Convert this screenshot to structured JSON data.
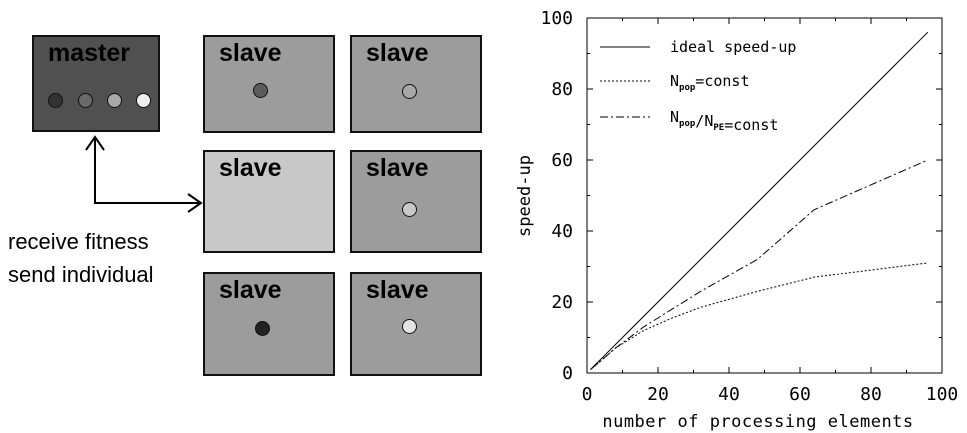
{
  "diagram": {
    "master": {
      "label": "master",
      "fill": "#505050",
      "dot_colors": [
        "#333333",
        "#6a6a6a",
        "#a8a8a8",
        "#eeeeee"
      ]
    },
    "slaves": [
      {
        "label": "slave",
        "fill": "#9c9c9c",
        "dot": "#5c5c5c"
      },
      {
        "label": "slave",
        "fill": "#9c9c9c",
        "dot": "#a8a8a8"
      },
      {
        "label": "slave",
        "fill": "#c8c8c8",
        "dot": null
      },
      {
        "label": "slave",
        "fill": "#9c9c9c",
        "dot": "#c8c8c8"
      },
      {
        "label": "slave",
        "fill": "#9c9c9c",
        "dot": "#222222"
      },
      {
        "label": "slave",
        "fill": "#9c9c9c",
        "dot": "#e4e4e4"
      }
    ],
    "caption_line1": "receive fitness",
    "caption_line2": "send individual"
  },
  "chart_data": {
    "type": "line",
    "xlabel": "number of processing elements",
    "ylabel": "speed-up",
    "xlim": [
      0,
      100
    ],
    "ylim": [
      0,
      100
    ],
    "x_ticks": [
      "0",
      "20",
      "40",
      "60",
      "80",
      "100"
    ],
    "y_ticks": [
      "0",
      "20",
      "40",
      "60",
      "80",
      "100"
    ],
    "legend_placement": "top-left",
    "series": [
      {
        "name": "ideal speed-up",
        "style": "solid",
        "x": [
          1,
          96
        ],
        "y": [
          1,
          96
        ]
      },
      {
        "name": "N_pop=const",
        "legend_main": "N",
        "legend_sub": "pop",
        "legend_rest": "=const",
        "style": "dotted",
        "x": [
          1,
          4,
          8,
          16,
          24,
          32,
          48,
          64,
          96
        ],
        "y": [
          1,
          3.5,
          7,
          12,
          15.5,
          18.5,
          23,
          27,
          31
        ]
      },
      {
        "name": "N_pop/N_PE=const",
        "legend_parts": [
          [
            "N",
            "pop"
          ],
          [
            "/N",
            "PE"
          ]
        ],
        "legend_rest": "=const",
        "style": "dashdot",
        "x": [
          1,
          4,
          8,
          16,
          24,
          32,
          48,
          64,
          96
        ],
        "y": [
          1,
          3.5,
          7,
          13,
          18,
          23,
          32,
          46,
          60
        ]
      }
    ]
  }
}
